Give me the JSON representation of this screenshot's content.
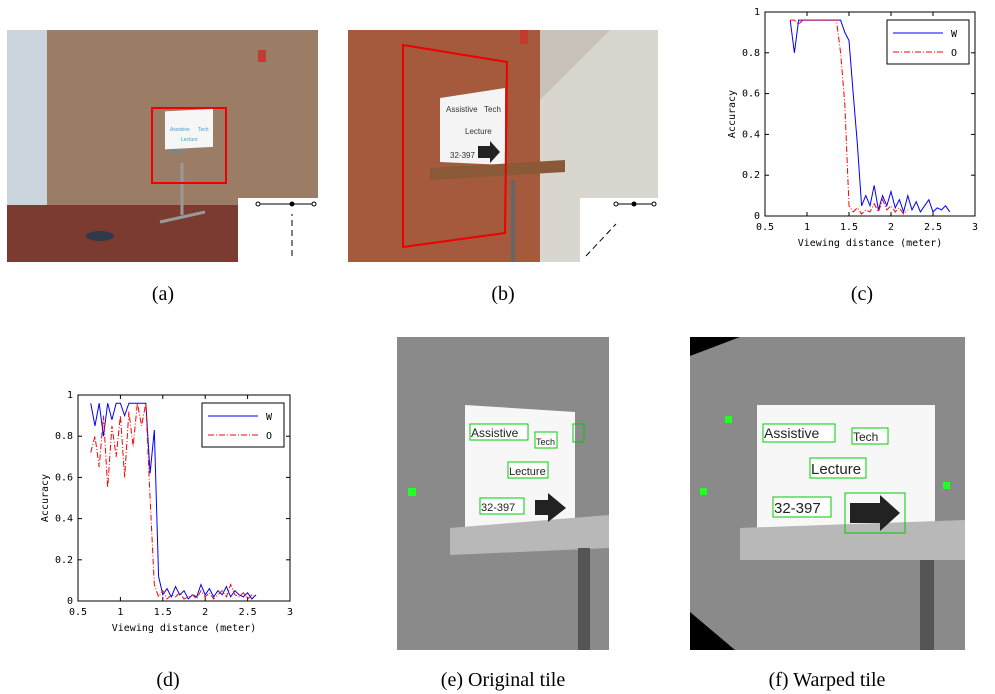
{
  "figure": {
    "captions": [
      "(a)",
      "(b)",
      "(c)",
      "(d)",
      "(e) Original tile",
      "(f) Warped tile"
    ],
    "sign_text": [
      "Assistive",
      "Tech",
      "Lecture",
      "32-397"
    ]
  },
  "chart_data": [
    {
      "type": "line",
      "xlabel": "Viewing distance (meter)",
      "ylabel": "Accuracy",
      "xlim": [
        0.5,
        3
      ],
      "ylim": [
        0,
        1
      ],
      "xticks": [
        0.5,
        1,
        1.5,
        2,
        2.5,
        3
      ],
      "yticks": [
        0,
        0.2,
        0.4,
        0.6,
        0.8,
        1
      ],
      "legend": "upper right",
      "series": [
        {
          "name": "W",
          "color": "#0000ff",
          "style": "solid",
          "x": [
            0.8,
            0.85,
            0.9,
            0.95,
            1.0,
            1.05,
            1.1,
            1.15,
            1.2,
            1.25,
            1.3,
            1.35,
            1.4,
            1.45,
            1.5,
            1.55,
            1.6,
            1.65,
            1.7,
            1.75,
            1.8,
            1.85,
            1.9,
            1.95,
            2.0,
            2.05,
            2.1,
            2.15,
            2.2,
            2.25,
            2.3,
            2.35,
            2.4,
            2.45,
            2.5,
            2.55,
            2.6,
            2.65,
            2.7
          ],
          "values": [
            0.96,
            0.8,
            0.96,
            0.96,
            0.96,
            0.96,
            0.96,
            0.96,
            0.96,
            0.96,
            0.96,
            0.96,
            0.96,
            0.9,
            0.86,
            0.6,
            0.35,
            0.05,
            0.1,
            0.05,
            0.15,
            0.03,
            0.1,
            0.05,
            0.12,
            0.04,
            0.08,
            0.02,
            0.1,
            0.03,
            0.07,
            0.02,
            0.05,
            0.08,
            0.02,
            0.04,
            0.03,
            0.05,
            0.02
          ]
        },
        {
          "name": "O",
          "color": "#ff0000",
          "style": "dashdot",
          "x": [
            0.8,
            0.85,
            0.9,
            0.95,
            1.0,
            1.05,
            1.1,
            1.15,
            1.2,
            1.25,
            1.3,
            1.35,
            1.4,
            1.45,
            1.5,
            1.55,
            1.6,
            1.65,
            1.7,
            1.75,
            1.8,
            1.85,
            1.9,
            1.95,
            2.0,
            2.05,
            2.1,
            2.15,
            2.2
          ],
          "values": [
            0.96,
            0.96,
            0.94,
            0.96,
            0.96,
            0.96,
            0.96,
            0.96,
            0.96,
            0.96,
            0.96,
            0.96,
            0.8,
            0.55,
            0.05,
            0.02,
            0.04,
            0.01,
            0.03,
            0.02,
            0.06,
            0.02,
            0.08,
            0.03,
            0.05,
            0.02,
            0.04,
            0.01,
            0.03
          ]
        }
      ]
    },
    {
      "type": "line",
      "xlabel": "Viewing distance (meter)",
      "ylabel": "Accuracy",
      "xlim": [
        0.5,
        3
      ],
      "ylim": [
        0,
        1
      ],
      "xticks": [
        0.5,
        1,
        1.5,
        2,
        2.5,
        3
      ],
      "yticks": [
        0,
        0.2,
        0.4,
        0.6,
        0.8,
        1
      ],
      "legend": "upper right",
      "series": [
        {
          "name": "W",
          "color": "#0000ff",
          "style": "solid",
          "x": [
            0.65,
            0.7,
            0.75,
            0.8,
            0.85,
            0.9,
            0.95,
            1.0,
            1.05,
            1.1,
            1.15,
            1.2,
            1.25,
            1.3,
            1.35,
            1.4,
            1.45,
            1.5,
            1.55,
            1.6,
            1.65,
            1.7,
            1.75,
            1.8,
            1.85,
            1.9,
            1.95,
            2.0,
            2.05,
            2.1,
            2.15,
            2.2,
            2.25,
            2.3,
            2.35,
            2.4,
            2.45,
            2.5,
            2.55,
            2.6
          ],
          "values": [
            0.96,
            0.85,
            0.96,
            0.8,
            0.96,
            0.88,
            0.96,
            0.96,
            0.9,
            0.96,
            0.96,
            0.96,
            0.96,
            0.96,
            0.62,
            0.83,
            0.12,
            0.03,
            0.06,
            0.02,
            0.07,
            0.03,
            0.05,
            0.01,
            0.03,
            0.02,
            0.08,
            0.03,
            0.06,
            0.02,
            0.05,
            0.03,
            0.07,
            0.02,
            0.05,
            0.03,
            0.02,
            0.04,
            0.01,
            0.03
          ]
        },
        {
          "name": "O",
          "color": "#ff0000",
          "style": "dashdot",
          "x": [
            0.65,
            0.7,
            0.75,
            0.8,
            0.85,
            0.9,
            0.95,
            1.0,
            1.05,
            1.1,
            1.15,
            1.2,
            1.25,
            1.3,
            1.35,
            1.4,
            1.45,
            1.5,
            1.55,
            1.6,
            1.65,
            1.7,
            1.75,
            1.8,
            1.85,
            1.9,
            1.95,
            2.0,
            2.05,
            2.1,
            2.15,
            2.2,
            2.25,
            2.3,
            2.35,
            2.4,
            2.45,
            2.5,
            2.55,
            2.6
          ],
          "values": [
            0.72,
            0.8,
            0.65,
            0.9,
            0.55,
            0.85,
            0.7,
            0.9,
            0.6,
            0.92,
            0.75,
            0.96,
            0.85,
            0.96,
            0.5,
            0.08,
            0.02,
            0.05,
            0.01,
            0.03,
            0.02,
            0.04,
            0.01,
            0.02,
            0.03,
            0.01,
            0.05,
            0.02,
            0.04,
            0.01,
            0.03,
            0.05,
            0.02,
            0.08,
            0.03,
            0.02,
            0.04,
            0.01,
            0.03,
            0.02
          ]
        }
      ]
    }
  ]
}
